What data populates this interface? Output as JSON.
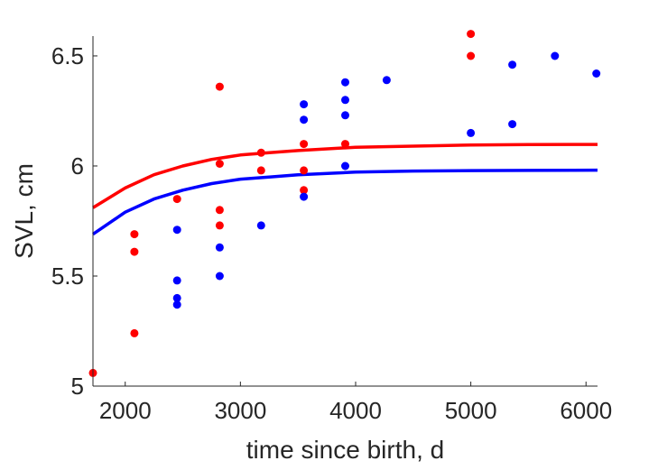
{
  "chart_data": {
    "type": "scatter",
    "title": "",
    "xlabel": "time since birth, d",
    "ylabel": "SVL, cm",
    "xlim": [
      1720,
      6100
    ],
    "ylim": [
      5,
      6.59
    ],
    "xticks": [
      2000,
      3000,
      4000,
      5000,
      6000
    ],
    "yticks": [
      5,
      5.5,
      6,
      6.5
    ],
    "ytick_labels": [
      "5",
      "5.5",
      "6",
      "6.5"
    ],
    "grid": false,
    "colors": {
      "red": "#ff0000",
      "blue": "#0000ff"
    },
    "series": [
      {
        "color": "#ff0000",
        "kind": "points",
        "points": [
          [
            1720,
            5.06
          ],
          [
            2080,
            5.24
          ],
          [
            2080,
            5.61
          ],
          [
            2080,
            5.69
          ],
          [
            2450,
            5.85
          ],
          [
            2820,
            5.73
          ],
          [
            2820,
            5.8
          ],
          [
            2820,
            6.01
          ],
          [
            2820,
            6.36
          ],
          [
            3180,
            5.98
          ],
          [
            3180,
            6.06
          ],
          [
            3550,
            5.89
          ],
          [
            3550,
            5.98
          ],
          [
            3550,
            6.1
          ],
          [
            3910,
            6.1
          ],
          [
            5000,
            6.5
          ],
          [
            5000,
            6.6
          ]
        ]
      },
      {
        "color": "#0000ff",
        "kind": "points",
        "points": [
          [
            2450,
            5.37
          ],
          [
            2450,
            5.4
          ],
          [
            2450,
            5.48
          ],
          [
            2450,
            5.71
          ],
          [
            2820,
            5.5
          ],
          [
            2820,
            5.63
          ],
          [
            3180,
            5.73
          ],
          [
            3550,
            5.86
          ],
          [
            3550,
            6.21
          ],
          [
            3550,
            6.28
          ],
          [
            3910,
            6.0
          ],
          [
            3910,
            6.23
          ],
          [
            3910,
            6.3
          ],
          [
            3910,
            6.38
          ],
          [
            4270,
            6.39
          ],
          [
            5000,
            6.15
          ],
          [
            5360,
            6.19
          ],
          [
            5360,
            6.46
          ],
          [
            5730,
            6.5
          ],
          [
            6090,
            6.42
          ]
        ]
      },
      {
        "color": "#ff0000",
        "kind": "line",
        "points": [
          [
            1720,
            5.81
          ],
          [
            2000,
            5.9
          ],
          [
            2250,
            5.96
          ],
          [
            2500,
            6.0
          ],
          [
            2750,
            6.03
          ],
          [
            3000,
            6.05
          ],
          [
            3250,
            6.06
          ],
          [
            3500,
            6.07
          ],
          [
            4000,
            6.085
          ],
          [
            4500,
            6.09
          ],
          [
            5000,
            6.095
          ],
          [
            5500,
            6.097
          ],
          [
            6100,
            6.098
          ]
        ]
      },
      {
        "color": "#0000ff",
        "kind": "line",
        "points": [
          [
            1720,
            5.69
          ],
          [
            2000,
            5.79
          ],
          [
            2250,
            5.85
          ],
          [
            2500,
            5.89
          ],
          [
            2750,
            5.92
          ],
          [
            3000,
            5.94
          ],
          [
            3250,
            5.95
          ],
          [
            3500,
            5.96
          ],
          [
            4000,
            5.972
          ],
          [
            4500,
            5.977
          ],
          [
            5000,
            5.979
          ],
          [
            5500,
            5.98
          ],
          [
            6100,
            5.981
          ]
        ]
      }
    ]
  }
}
